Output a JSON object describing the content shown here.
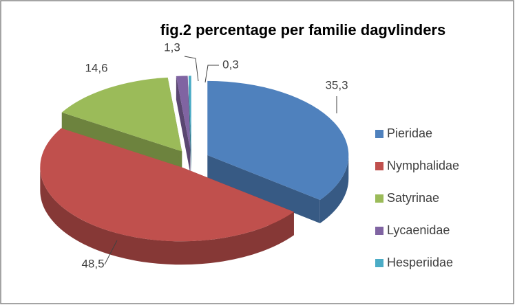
{
  "chart_data": {
    "type": "pie",
    "title": "fig.2 percentage per familie dagvlinders",
    "categories": [
      "Pieridae",
      "Nymphalidae",
      "Satyrinae",
      "Lycaenidae",
      "Hesperiidae"
    ],
    "values": [
      35.3,
      48.5,
      14.6,
      1.3,
      0.3
    ],
    "value_labels": [
      "35,3",
      "48,5",
      "14,6",
      "1,3",
      "0,3"
    ],
    "colors": [
      "#4f81bd",
      "#c0504d",
      "#9bbb59",
      "#8064a2",
      "#4bacc6"
    ],
    "legend": "right"
  }
}
